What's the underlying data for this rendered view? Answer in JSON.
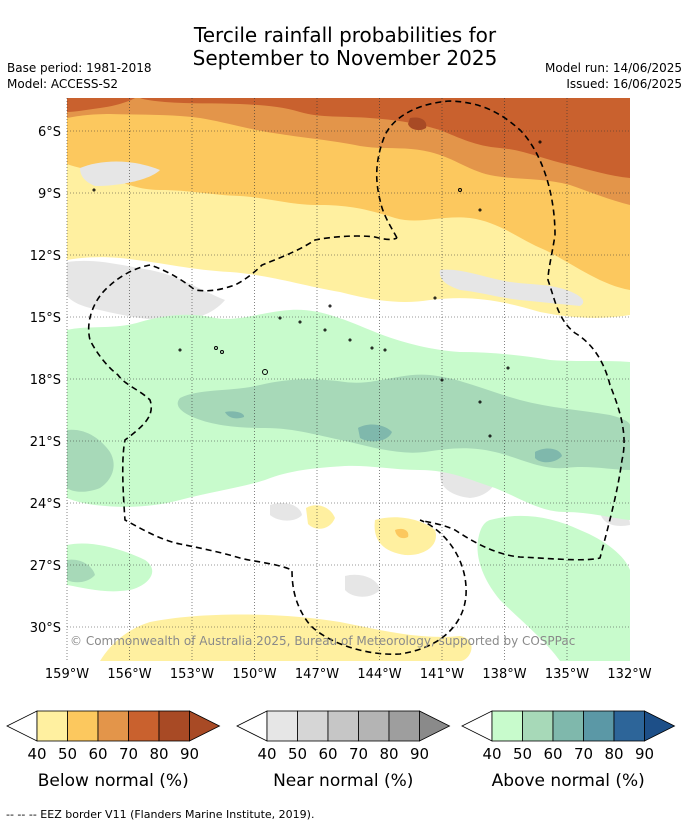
{
  "title": {
    "line1": "Tercile rainfall probabilities for",
    "line2": "September to November 2025"
  },
  "meta": {
    "base_period": "Base period: 1981-2018",
    "model": "Model: ACCESS-S2",
    "model_run": "Model run: 14/06/2025",
    "issued": "Issued: 16/06/2025"
  },
  "map": {
    "x_ticks": [
      "159°W",
      "156°W",
      "153°W",
      "150°W",
      "147°W",
      "144°W",
      "141°W",
      "138°W",
      "135°W",
      "132°W"
    ],
    "y_ticks": [
      "6°S",
      "9°S",
      "12°S",
      "15°S",
      "18°S",
      "21°S",
      "24°S",
      "27°S",
      "30°S"
    ],
    "copyright": "© Commonwealth of Australia 2025, Bureau of Meteorology, supported by COSPPac"
  },
  "legends": [
    {
      "label": "Below normal (%)",
      "ticks": [
        "40",
        "50",
        "60",
        "70",
        "80",
        "90"
      ],
      "colors": [
        "#ffffff",
        "#fff0a0",
        "#fcc85e",
        "#e3954a",
        "#c9612e",
        "#a84a25",
        "#a84a25"
      ]
    },
    {
      "label": "Near normal (%)",
      "ticks": [
        "40",
        "50",
        "60",
        "70",
        "80",
        "90"
      ],
      "colors": [
        "#ffffff",
        "#e6e6e6",
        "#d6d6d6",
        "#c6c6c6",
        "#b4b4b4",
        "#9e9e9e",
        "#8a8a8a"
      ]
    },
    {
      "label": "Above normal (%)",
      "ticks": [
        "40",
        "50",
        "60",
        "70",
        "80",
        "90"
      ],
      "colors": [
        "#ffffff",
        "#c8fbcc",
        "#a7d9b8",
        "#7fb8ac",
        "#5b98a6",
        "#2d6599",
        "#1d4f88"
      ]
    }
  ],
  "footer": "--  --  -- EEZ border V11 (Flanders Marine Institute, 2019)."
}
